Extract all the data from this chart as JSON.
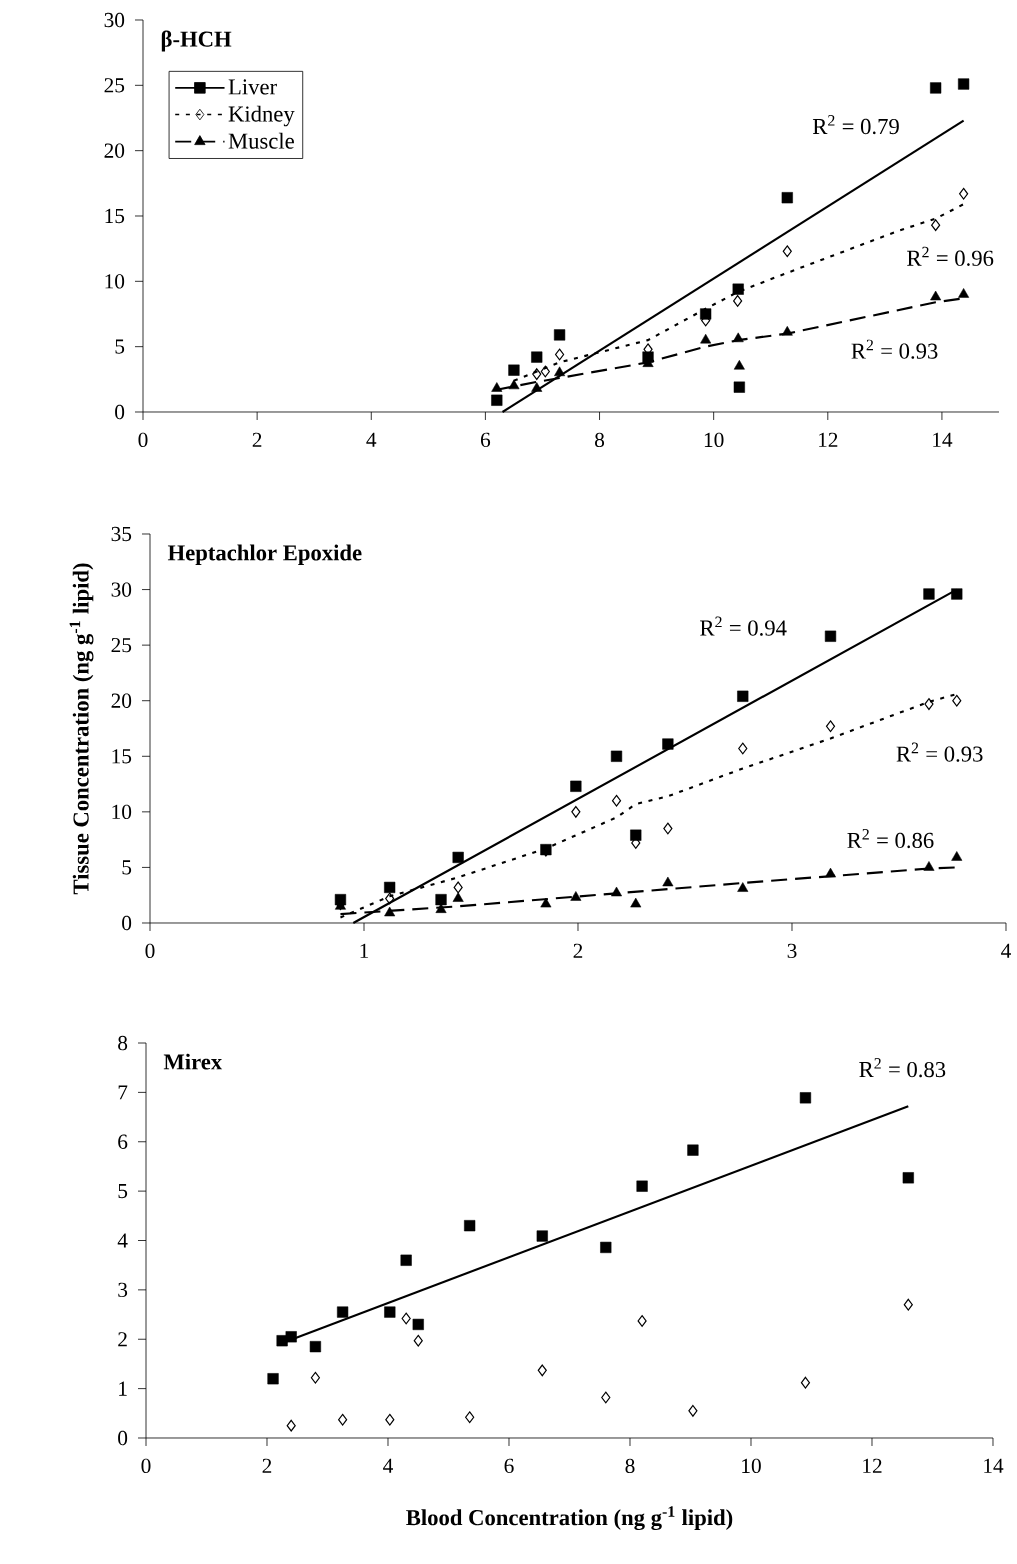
{
  "chart_data": [
    {
      "type": "scatter",
      "title": "β-HCH",
      "xlim": [
        0,
        15
      ],
      "xticks": [
        0,
        2,
        4,
        6,
        8,
        10,
        12,
        14
      ],
      "ylim": [
        0,
        30
      ],
      "yticks": [
        0,
        5,
        10,
        15,
        20,
        25,
        30
      ],
      "legend": "top left",
      "series": [
        {
          "name": "Liver",
          "marker": "square",
          "line_style": "solid",
          "color": "#000000",
          "x": [
            6.2,
            6.5,
            6.9,
            7.3,
            8.85,
            9.86,
            10.43,
            10.45,
            11.29,
            13.89,
            14.38
          ],
          "values": [
            0.9,
            3.2,
            4.2,
            5.9,
            4.2,
            7.5,
            9.4,
            1.9,
            16.4,
            24.8,
            25.1
          ]
        },
        {
          "name": "Kidney",
          "marker": "diamond",
          "line_style": "dotted",
          "color": "#000000",
          "x": [
            6.9,
            7.05,
            7.3,
            8.85,
            9.86,
            10.42,
            11.29,
            13.89,
            14.38
          ],
          "values": [
            2.9,
            3.1,
            4.4,
            4.8,
            7.0,
            8.5,
            12.3,
            14.3,
            16.7
          ]
        },
        {
          "name": "Muscle",
          "marker": "triangle",
          "line_style": "dashed",
          "color": "#000000",
          "x": [
            6.2,
            6.5,
            6.9,
            7.3,
            8.85,
            9.86,
            10.43,
            10.45,
            11.29,
            13.89,
            14.38
          ],
          "values": [
            1.8,
            2.0,
            1.8,
            3.0,
            3.7,
            5.5,
            5.6,
            3.5,
            6.1,
            8.8,
            9.0
          ]
        },
        {
          "type": "line",
          "line_style": "solid",
          "color": "#000000",
          "x": [
            6.3,
            14.38
          ],
          "values": [
            0,
            22.3
          ]
        },
        {
          "type": "line",
          "line_style": "dotted",
          "color": "#000000",
          "x": [
            6.5,
            7.3,
            8.85,
            9.86,
            10.43,
            11.32,
            13.26,
            13.89,
            14.38
          ],
          "values": [
            2.4,
            3.8,
            5.5,
            7.9,
            9.2,
            10.7,
            13.9,
            14.8,
            15.9
          ]
        },
        {
          "type": "line",
          "line_style": "dashed",
          "color": "#000000",
          "x": [
            6.2,
            6.9,
            7.3,
            8.85,
            9.86,
            10.43,
            11.29,
            13.89,
            14.38
          ],
          "values": [
            1.7,
            2.3,
            2.6,
            3.8,
            5.0,
            5.5,
            6.0,
            8.4,
            8.7
          ]
        }
      ],
      "annotations": [
        "R$^{2}$ = 0.79",
        "R$^{2}$ = 0.96",
        "R$^{2}$ = 0.93"
      ]
    },
    {
      "type": "scatter",
      "title": "Heptachlor Epoxide",
      "ylabel": "Tissue Concentration (ng g$^{-1}$ lipid)",
      "xlim": [
        0,
        4
      ],
      "xticks": [
        0,
        1,
        2,
        3,
        4
      ],
      "ylim": [
        0,
        35
      ],
      "yticks": [
        0,
        5,
        10,
        15,
        20,
        25,
        30,
        35
      ],
      "series": [
        {
          "marker": "square",
          "color": "#000000",
          "x": [
            0.89,
            1.12,
            1.36,
            1.44,
            1.85,
            1.99,
            2.18,
            2.27,
            2.42,
            2.77,
            3.18,
            3.64,
            3.77
          ],
          "values": [
            2.1,
            3.2,
            2.1,
            5.9,
            6.6,
            12.3,
            15.0,
            7.9,
            16.1,
            20.4,
            25.8,
            29.6,
            29.6
          ]
        },
        {
          "marker": "diamond",
          "color": "#000000",
          "x": [
            0.89,
            1.12,
            1.36,
            1.44,
            1.85,
            1.99,
            2.18,
            2.27,
            2.42,
            2.77,
            3.18,
            3.64,
            3.77
          ],
          "values": [
            1.7,
            2.2,
            null,
            3.2,
            6.5,
            10.0,
            11.0,
            7.2,
            8.5,
            15.7,
            17.7,
            19.7,
            20.0
          ]
        },
        {
          "marker": "triangle",
          "color": "#000000",
          "x": [
            0.89,
            1.12,
            1.36,
            1.44,
            1.85,
            1.99,
            2.18,
            2.27,
            2.42,
            2.77,
            3.18,
            3.64,
            3.77
          ],
          "values": [
            1.5,
            0.9,
            1.2,
            2.2,
            1.7,
            2.3,
            2.7,
            1.7,
            3.6,
            3.1,
            4.4,
            5.0,
            5.9
          ]
        },
        {
          "type": "line",
          "line_style": "solid",
          "color": "#000000",
          "x": [
            0.95,
            3.77
          ],
          "values": [
            0,
            30.0
          ]
        },
        {
          "type": "line",
          "line_style": "dotted",
          "color": "#000000",
          "x": [
            0.89,
            1.12,
            1.44,
            1.85,
            2.18,
            2.27,
            2.42,
            2.77,
            3.18,
            3.64,
            3.77
          ],
          "values": [
            0.5,
            2.4,
            4.1,
            6.7,
            9.5,
            10.7,
            11.4,
            13.9,
            16.6,
            19.9,
            20.6
          ]
        },
        {
          "type": "line",
          "line_style": "dashed",
          "color": "#000000",
          "x": [
            0.89,
            1.44,
            2.77,
            3.64,
            3.77
          ],
          "values": [
            0.8,
            1.5,
            3.6,
            4.9,
            5.0
          ]
        }
      ],
      "annotations": [
        "R$^{2}$ = 0.94",
        "R$^{2}$ = 0.93",
        "R$^{2}$ = 0.86"
      ]
    },
    {
      "type": "scatter",
      "title": "Mirex",
      "xlabel": "Blood Concentration (ng g$^{-1}$ lipid)",
      "xlim": [
        0,
        14
      ],
      "xticks": [
        0,
        2,
        4,
        6,
        8,
        10,
        12,
        14
      ],
      "ylim": [
        0,
        8
      ],
      "yticks": [
        0,
        1,
        2,
        3,
        4,
        5,
        6,
        7,
        8
      ],
      "series": [
        {
          "marker": "square",
          "color": "#000000",
          "x": [
            2.1,
            2.25,
            2.4,
            2.8,
            3.25,
            4.03,
            4.3,
            4.5,
            5.35,
            6.55,
            7.6,
            8.2,
            9.04,
            10.9,
            12.6
          ],
          "values": [
            1.2,
            1.97,
            2.05,
            1.85,
            2.55,
            2.55,
            3.6,
            2.3,
            4.3,
            4.09,
            3.86,
            5.1,
            5.83,
            6.89,
            5.27
          ]
        },
        {
          "marker": "diamond",
          "color": "#000000",
          "x": [
            2.4,
            2.8,
            3.25,
            4.03,
            4.3,
            4.5,
            5.35,
            6.55,
            7.6,
            8.2,
            9.04,
            10.9,
            12.6
          ],
          "values": [
            0.25,
            1.22,
            0.37,
            0.37,
            2.42,
            1.97,
            0.42,
            1.37,
            0.82,
            2.37,
            0.55,
            1.12,
            2.7
          ]
        },
        {
          "type": "line",
          "line_style": "solid",
          "color": "#000000",
          "x": [
            2.2,
            12.6
          ],
          "values": [
            1.9,
            6.72
          ]
        }
      ],
      "annotations": [
        "R$^{2}$ = 0.83"
      ]
    }
  ]
}
